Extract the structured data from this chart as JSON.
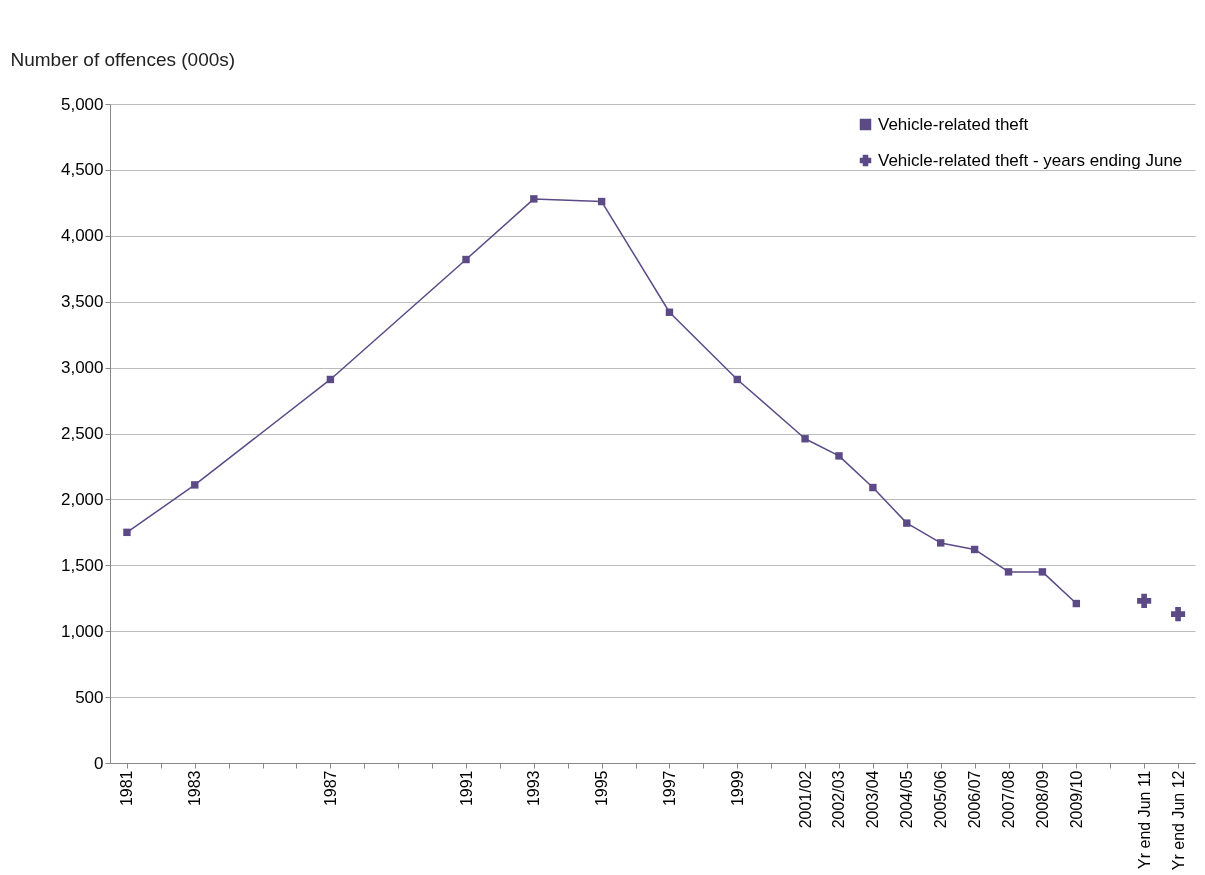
{
  "chart_data": {
    "type": "line",
    "ylabel": "Number of offences (000s)",
    "categories": [
      "1981",
      null,
      "1983",
      null,
      null,
      null,
      "1987",
      null,
      null,
      null,
      "1991",
      null,
      "1993",
      null,
      "1995",
      null,
      "1997",
      null,
      "1999",
      null,
      "2001/02",
      "2002/03",
      "2003/04",
      "2004/05",
      "2005/06",
      "2006/07",
      "2007/08",
      "2008/09",
      "2009/10",
      null,
      "Yr end Jun 11",
      "Yr end Jun 12"
    ],
    "series": [
      {
        "name": "Vehicle-related theft",
        "marker": "square",
        "color": "#5b4a86",
        "values": [
          1750,
          null,
          2110,
          null,
          null,
          null,
          2910,
          null,
          null,
          null,
          3820,
          null,
          4280,
          null,
          4260,
          null,
          3420,
          null,
          2910,
          null,
          2460,
          2330,
          2090,
          1820,
          1670,
          1620,
          1450,
          1450,
          1210,
          null,
          null,
          null
        ]
      },
      {
        "name": "Vehicle-related theft - years ending June",
        "type": "scatter",
        "marker": "cross",
        "color": "#5b4a86",
        "values": [
          null,
          null,
          null,
          null,
          null,
          null,
          null,
          null,
          null,
          null,
          null,
          null,
          null,
          null,
          null,
          null,
          null,
          null,
          null,
          null,
          null,
          null,
          null,
          null,
          null,
          null,
          null,
          null,
          null,
          null,
          1230,
          1130
        ]
      }
    ],
    "ylim": [
      0,
      5000
    ],
    "yticks": [
      0,
      500,
      {
        "value": 1000,
        "label": "1,000"
      },
      {
        "value": 1500,
        "label": "1,500"
      },
      {
        "value": 2000,
        "label": "2,000"
      },
      {
        "value": 2500,
        "label": "2,500"
      },
      {
        "value": 3000,
        "label": "3,000"
      },
      {
        "value": 3500,
        "label": "3,500"
      },
      {
        "value": 4000,
        "label": "4,000"
      },
      {
        "value": 4500,
        "label": "4,500"
      },
      {
        "value": 5000,
        "label": "5,000"
      }
    ],
    "grid": "y",
    "legend": "top right"
  }
}
